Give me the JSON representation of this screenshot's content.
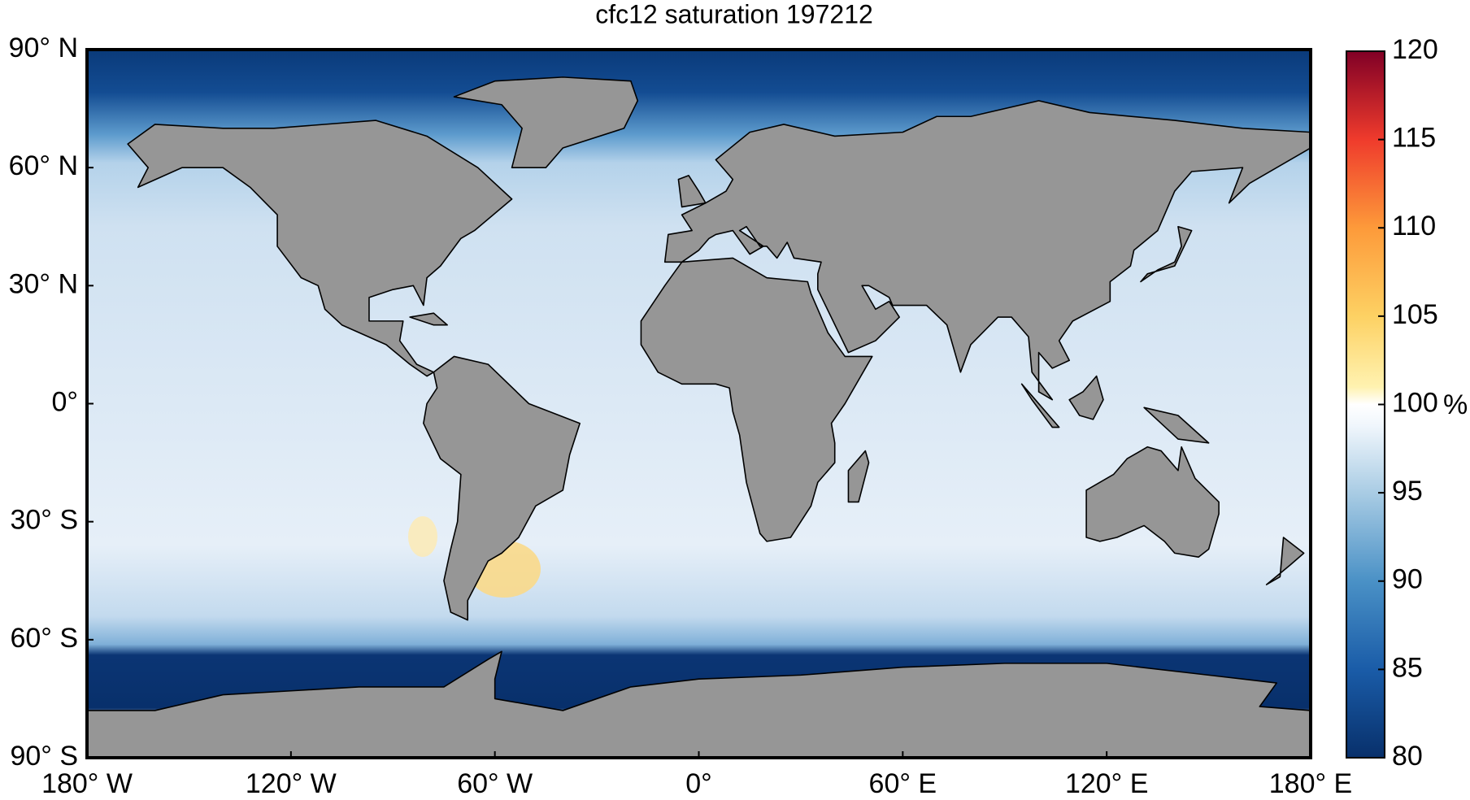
{
  "chart_data": {
    "type": "map",
    "title": "cfc12 saturation 197212",
    "xlim": [
      -180,
      180
    ],
    "ylim": [
      -90,
      90
    ],
    "xticks": [
      {
        "value": -180,
        "label": "180° W"
      },
      {
        "value": -120,
        "label": "120° W"
      },
      {
        "value": -60,
        "label": "60° W"
      },
      {
        "value": 0,
        "label": "0°"
      },
      {
        "value": 60,
        "label": "60° E"
      },
      {
        "value": 120,
        "label": "120° E"
      },
      {
        "value": 180,
        "label": "180° E"
      }
    ],
    "yticks": [
      {
        "value": 90,
        "label": "90° N"
      },
      {
        "value": 60,
        "label": "60° N"
      },
      {
        "value": 30,
        "label": "30° N"
      },
      {
        "value": 0,
        "label": "0°"
      },
      {
        "value": -30,
        "label": "30° S"
      },
      {
        "value": -60,
        "label": "60° S"
      },
      {
        "value": -90,
        "label": "90° S"
      }
    ],
    "colorbar_label": "%",
    "clim": [
      80,
      120
    ],
    "cticks": [
      80,
      85,
      90,
      95,
      100,
      105,
      110,
      115,
      120
    ]
  }
}
